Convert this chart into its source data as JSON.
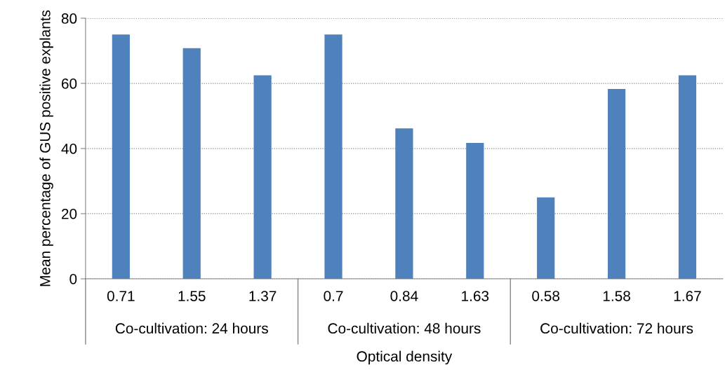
{
  "chart_data": {
    "type": "bar",
    "xlabel": "Optical density",
    "ylabel": "Mean percentage of GUS positive explants",
    "categories": [
      "0.71",
      "1.55",
      "1.37",
      "0.7",
      "0.84",
      "1.63",
      "0.58",
      "1.58",
      "1.67"
    ],
    "values": [
      75,
      70.8,
      62.5,
      75,
      46.2,
      41.7,
      25,
      58.3,
      62.5
    ],
    "color": "#4f81bd",
    "ylim": [
      0,
      80
    ],
    "yticks": [
      0,
      20,
      40,
      60,
      80
    ],
    "grid": "y",
    "annotations": [
      "Co-cultivation: 24 hours",
      "Co-cultivation: 48 hours",
      "Co-cultivation: 72 hours"
    ]
  }
}
